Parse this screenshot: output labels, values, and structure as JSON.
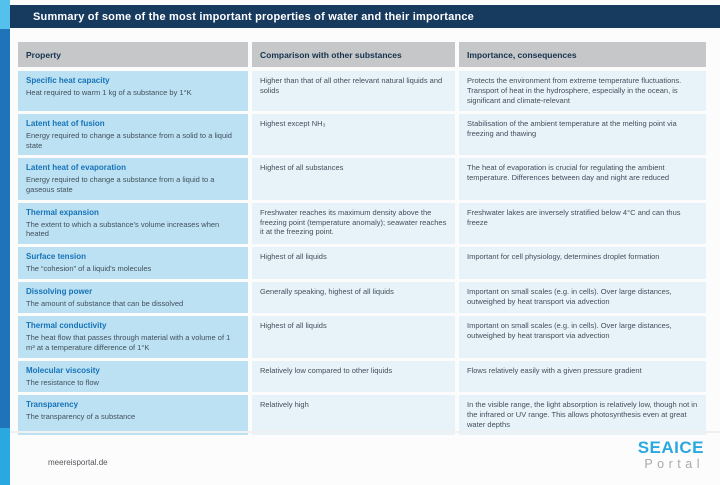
{
  "header": {
    "title": "Summary of some of the most important properties of water and their importance"
  },
  "table": {
    "columns": [
      "Property",
      "Comparison with other substances",
      "Importance, consequences"
    ],
    "rows": [
      {
        "property_title": "Specific heat capacity",
        "property_desc": "Heat required to warm 1 kg of a substance by 1°K",
        "comparison": "Higher than that of all other relevant natural liquids and solids",
        "importance": "Protects the environment from extreme temperature fluctuations. Transport of heat in the hydrosphere, especially in the ocean, is significant and climate-relevant"
      },
      {
        "property_title": "Latent heat of fusion",
        "property_desc": "Energy required to change a substance from a solid to a liquid state",
        "comparison": "Highest except NH₃",
        "importance": "Stabilisation of the ambient temperature at the melting point via freezing and thawing"
      },
      {
        "property_title": "Latent heat of evaporation",
        "property_desc": "Energy required to change a substance from a liquid to a gaseous state",
        "comparison": "Highest of all substances",
        "importance": "The heat of evaporation is crucial for regulating the ambient temperature. Differences between day and night are reduced"
      },
      {
        "property_title": "Thermal expansion",
        "property_desc": "The extent to which a substance's volume increases when heated",
        "comparison": "Freshwater reaches its maximum density above the freezing point (temperature anomaly); seawater reaches it at the freezing point.",
        "importance": "Freshwater lakes are inversely stratified below 4°C and can thus freeze"
      },
      {
        "property_title": "Surface tension",
        "property_desc": "The “cohesion” of a liquid's molecules",
        "comparison": "Highest of all liquids",
        "importance": "Important for cell physiology, determines droplet formation"
      },
      {
        "property_title": "Dissolving power",
        "property_desc": "The amount of substance that can be dissolved",
        "comparison": "Generally speaking, highest of all liquids",
        "importance": "Important on small scales (e.g. in cells). Over large distances, outweighed by heat transport via advection"
      },
      {
        "property_title": "Thermal conductivity",
        "property_desc": "The heat flow that passes through material with a volume of 1 m³ at a temperature difference of 1°K",
        "comparison": "Highest of all liquids",
        "importance": "Important on small scales (e.g. in cells). Over large distances, outweighed by heat transport via advection"
      },
      {
        "property_title": "Molecular viscosity",
        "property_desc": "The resistance to flow",
        "comparison": "Relatively low compared to other liquids",
        "importance": "Flows relatively easily with a given pressure gradient"
      },
      {
        "property_title": "Transparency",
        "property_desc": "The transparency of a substance",
        "comparison": "Relatively high",
        "importance": "In the visible range, the light absorption is relatively low, though not in the infrared or UV range. This allows photosynthesis even at great water depths"
      }
    ]
  },
  "footer": {
    "site": "meereisportal.de",
    "logo_line1": "SEAICE",
    "logo_line2": "Portal"
  },
  "colors": {
    "titlebar_bg": "#173A5F",
    "edge_top_cyan": "#53C1EC",
    "edge_mid_blue": "#2173B9",
    "edge_bottom_cyan": "#29A9E0",
    "column_header_bg": "#C5C7C9",
    "property_cell_bg": "#BCE1F2",
    "value_cell_bg": "#E7F2F9",
    "property_title_color": "#1673B9",
    "body_text_color": "#42505C",
    "logo_cyan": "#29A9E0",
    "logo_gray": "#A7A9AC"
  }
}
